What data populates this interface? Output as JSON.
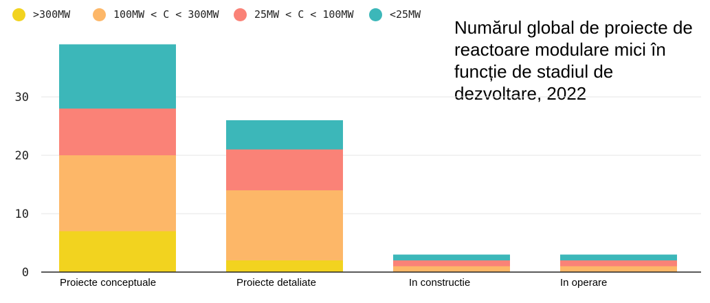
{
  "chart_data": {
    "type": "bar",
    "stacked": true,
    "title": "Numărul global de proiecte de reactoare modulare mici în funcție de stadiul de dezvoltare, 2022",
    "categories": [
      "Proiecte conceptuale",
      "Proiecte detaliate",
      "In constructie",
      "In operare"
    ],
    "series": [
      {
        "name": ">300MW",
        "color": "#f2d31f",
        "values": [
          7,
          2,
          0,
          0
        ]
      },
      {
        "name": "100MW < C < 300MW",
        "color": "#fdb768",
        "values": [
          13,
          12,
          1,
          1
        ]
      },
      {
        "name": "25MW < C < 100MW",
        "color": "#fa8277",
        "values": [
          8,
          7,
          1,
          1
        ]
      },
      {
        "name": "<25MW",
        "color": "#3cb7b9",
        "values": [
          11,
          5,
          1,
          1
        ]
      }
    ],
    "yticks": [
      "0",
      "10",
      "20",
      "30"
    ],
    "ylim": [
      0,
      40
    ],
    "grid": true,
    "legend_position": "top-left"
  }
}
